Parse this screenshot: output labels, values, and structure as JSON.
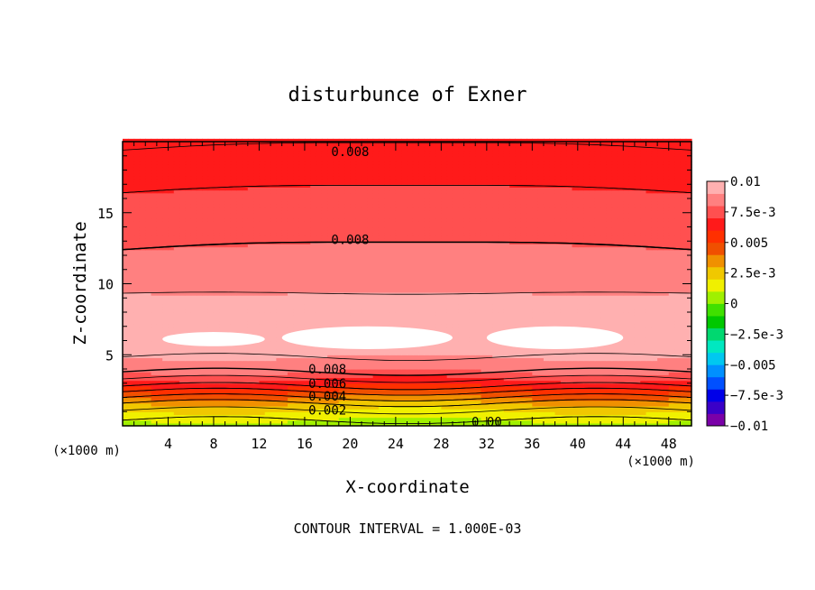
{
  "chart_data": {
    "type": "heatmap",
    "title": "disturbunce of Exner",
    "xlabel": "X-coordinate",
    "ylabel": "Z-coordinate",
    "x_unit": "(×1000 m)",
    "y_unit": "(×1000 m)",
    "xlim": [
      0,
      50
    ],
    "ylim": [
      0,
      20
    ],
    "x_ticks": [
      "4",
      "8",
      "12",
      "16",
      "20",
      "24",
      "28",
      "32",
      "36",
      "40",
      "44",
      "48"
    ],
    "y_ticks": [
      "5",
      "10",
      "15"
    ],
    "contour_interval_label": "CONTOUR INTERVAL = 1.000E-03",
    "contour_labels": [
      {
        "text": "0.008",
        "x": 20,
        "z": 19.3
      },
      {
        "text": "0.008",
        "x": 20,
        "z": 13.1
      },
      {
        "text": "0.008",
        "x": 18,
        "z": 4.0
      },
      {
        "text": "0.006",
        "x": 18,
        "z": 3.0
      },
      {
        "text": "0.004",
        "x": 18,
        "z": 2.1
      },
      {
        "text": "0.002",
        "x": 18,
        "z": 1.1
      },
      {
        "text": "0.00",
        "x": 32,
        "z": 0.3
      }
    ],
    "colorbar": {
      "min": -0.01,
      "max": 0.01,
      "labels": [
        "0.01",
        "7.5e-3",
        "0.005",
        "2.5e-3",
        "0",
        "−2.5e-3",
        "−0.005",
        "−7.5e-3",
        "−0.01"
      ],
      "colors": [
        "#7a00a8",
        "#3a00c8",
        "#0000e8",
        "#0050ff",
        "#0090ff",
        "#00c8f0",
        "#00e8c0",
        "#00d870",
        "#00c800",
        "#40e000",
        "#a0f000",
        "#f0f000",
        "#f0c800",
        "#f09000",
        "#f05000",
        "#ff3000",
        "#ff1a1a",
        "#ff5050",
        "#ff8080",
        "#ffb0b0"
      ]
    },
    "profile": [
      {
        "z": 0,
        "value": 0.0
      },
      {
        "z": 0.4,
        "value": 0.001
      },
      {
        "z": 0.8,
        "value": 0.0015
      },
      {
        "z": 1.2,
        "value": 0.0022
      },
      {
        "z": 1.6,
        "value": 0.003
      },
      {
        "z": 2.0,
        "value": 0.004
      },
      {
        "z": 2.4,
        "value": 0.005
      },
      {
        "z": 2.8,
        "value": 0.006
      },
      {
        "z": 3.2,
        "value": 0.0068
      },
      {
        "z": 3.6,
        "value": 0.0076
      },
      {
        "z": 4.0,
        "value": 0.0084
      },
      {
        "z": 4.4,
        "value": 0.0087
      },
      {
        "z": 5.0,
        "value": 0.0091
      },
      {
        "z": 5.6,
        "value": 0.0095
      },
      {
        "z": 6.2,
        "value": 0.0099
      },
      {
        "z": 7.5,
        "value": 0.0096
      },
      {
        "z": 9.0,
        "value": 0.0091
      },
      {
        "z": 10.0,
        "value": 0.0088
      },
      {
        "z": 11.5,
        "value": 0.0084
      },
      {
        "z": 13.0,
        "value": 0.008
      },
      {
        "z": 15.0,
        "value": 0.0076
      },
      {
        "z": 17.0,
        "value": 0.007
      },
      {
        "z": 18.5,
        "value": 0.0065
      },
      {
        "z": 20.0,
        "value": 0.006
      }
    ],
    "saturated_regions": [
      {
        "x": [
          3.5,
          12.5
        ],
        "z": [
          5.6,
          6.6
        ]
      },
      {
        "x": [
          14,
          29
        ],
        "z": [
          5.4,
          7.0
        ]
      },
      {
        "x": [
          32,
          44
        ],
        "z": [
          5.4,
          7.0
        ]
      }
    ]
  }
}
